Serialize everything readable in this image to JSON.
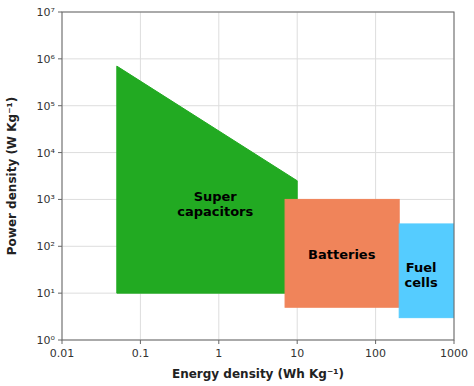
{
  "chart_data": {
    "type": "region",
    "xlabel": "Energy density (Wh Kg⁻¹)",
    "ylabel": "Power density (W Kg⁻¹)",
    "log": true,
    "grid": true,
    "xlim": [
      0.01,
      1000
    ],
    "ylim": [
      1,
      10000000
    ],
    "xticks": [
      0.01,
      0.1,
      1,
      10,
      100,
      1000
    ],
    "yticks": [
      {
        "value": 1,
        "label": "10⁰"
      },
      {
        "value": 10,
        "label": "10¹"
      },
      {
        "value": 100,
        "label": "10²"
      },
      {
        "value": 1000,
        "label": "10³"
      },
      {
        "value": 10000,
        "label": "10⁴"
      },
      {
        "value": 100000,
        "label": "10⁵"
      },
      {
        "value": 1000000,
        "label": "10⁶"
      },
      {
        "value": 10000000,
        "label": "10⁷"
      }
    ],
    "series": [
      {
        "type": "polygon",
        "color": "#22aa22",
        "x": [
          0.05,
          0.05,
          10,
          10
        ],
        "values": [
          10,
          700000,
          2500,
          10
        ]
      },
      {
        "type": "rect",
        "color": "#f0845a",
        "x": [
          7,
          200
        ],
        "values": [
          5,
          1000
        ]
      },
      {
        "type": "rect",
        "color": "#55ccff",
        "x": [
          200,
          1000
        ],
        "values": [
          3,
          300
        ]
      }
    ],
    "annotations": [
      {
        "text": "Super\ncapacitors",
        "x": 0.9,
        "y": 800
      },
      {
        "text": "Batteries",
        "x": 37,
        "y": 70
      },
      {
        "text": "Fuel\ncells",
        "x": 380,
        "y": 25
      }
    ]
  }
}
